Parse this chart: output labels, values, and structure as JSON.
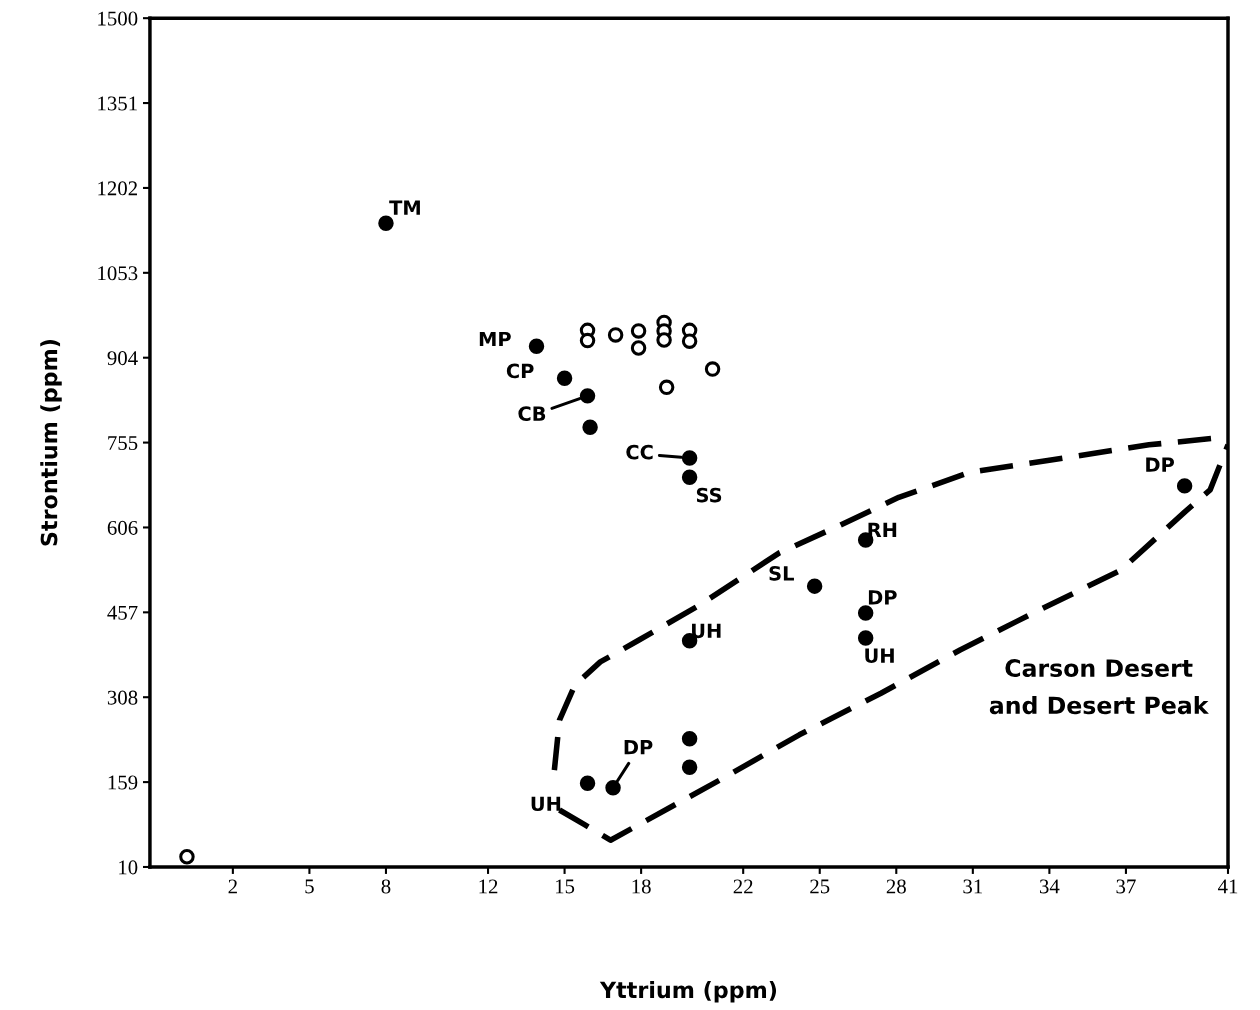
{
  "chart_data": {
    "type": "scatter",
    "xlabel": "Yttrium (ppm)",
    "ylabel": "Strontium (ppm)",
    "xlim": [
      -1.25,
      41
    ],
    "xticks": [
      2,
      5,
      8,
      12,
      15,
      18,
      22,
      25,
      28,
      31,
      34,
      37,
      41
    ],
    "ylim": [
      10,
      1500
    ],
    "yticks": [
      10,
      159,
      308,
      457,
      606,
      755,
      904,
      1053,
      1202,
      1351,
      1500
    ],
    "grid": false,
    "legend": false,
    "marker": "circle",
    "series": [
      {
        "color": "#000000",
        "x": [
          8.0,
          13.9,
          15.0,
          15.9,
          16.0,
          19.9,
          19.9,
          26.8,
          24.8,
          26.8,
          26.8,
          19.9,
          19.9,
          19.9,
          16.9,
          15.9,
          39.3
        ],
        "values": [
          1140,
          924,
          868,
          837,
          782,
          728,
          694,
          584,
          503,
          456,
          412,
          407,
          235,
          185,
          149,
          157,
          679
        ]
      },
      {
        "color": "#ffffff",
        "x": [
          0.2,
          15.9,
          15.9,
          17.0,
          17.9,
          17.9,
          18.9,
          18.9,
          18.9,
          19.9,
          19.9,
          20.8,
          19.0
        ],
        "values": [
          28,
          952,
          934,
          944,
          951,
          921,
          966,
          951,
          935,
          952,
          933,
          884,
          852
        ]
      },
      {
        "type": "line",
        "color": "#000000",
        "line_style": "dashed",
        "marker": "none",
        "x": [
          14.6,
          14.8,
          15.4,
          16.4,
          17.9,
          20.3,
          23.4,
          25.8,
          28.1,
          30.9,
          34.0,
          37.9,
          41.0
        ],
        "values": [
          180,
          268,
          329,
          370,
          408,
          470,
          561,
          610,
          659,
          703,
          724,
          751,
          765
        ]
      },
      {
        "type": "line",
        "color": "#000000",
        "line_style": "dashed",
        "marker": "none",
        "x": [
          14.8,
          15.8,
          16.8,
          17.9,
          21.1,
          24.2,
          27.4,
          30.5,
          33.6,
          36.8,
          39.3,
          40.3,
          41.0
        ],
        "values": [
          110,
          84,
          57,
          84,
          163,
          242,
          315,
          391,
          461,
          531,
          633,
          672,
          751
        ]
      }
    ],
    "annotations": [
      {
        "text": "TM",
        "x": 8.0,
        "y": 1140
      },
      {
        "text": "MP",
        "x": 13.9,
        "y": 924
      },
      {
        "text": "CP",
        "x": 15.0,
        "y": 868
      },
      {
        "text": "CB",
        "x": 15.9,
        "y": 837
      },
      {
        "text": "CC",
        "x": 19.9,
        "y": 728
      },
      {
        "text": "SS",
        "x": 19.9,
        "y": 694
      },
      {
        "text": "RH",
        "x": 26.8,
        "y": 584
      },
      {
        "text": "SL",
        "x": 24.8,
        "y": 503
      },
      {
        "text": "DP",
        "x": 26.8,
        "y": 456
      },
      {
        "text": "UH",
        "x": 26.8,
        "y": 412
      },
      {
        "text": "UH",
        "x": 19.9,
        "y": 407
      },
      {
        "text": "DP",
        "x": 16.9,
        "y": 149
      },
      {
        "text": "UH",
        "x": 15.9,
        "y": 157
      },
      {
        "text": "DP",
        "x": 39.3,
        "y": 679
      },
      "Carson Desert\nand Desert Peak"
    ]
  }
}
